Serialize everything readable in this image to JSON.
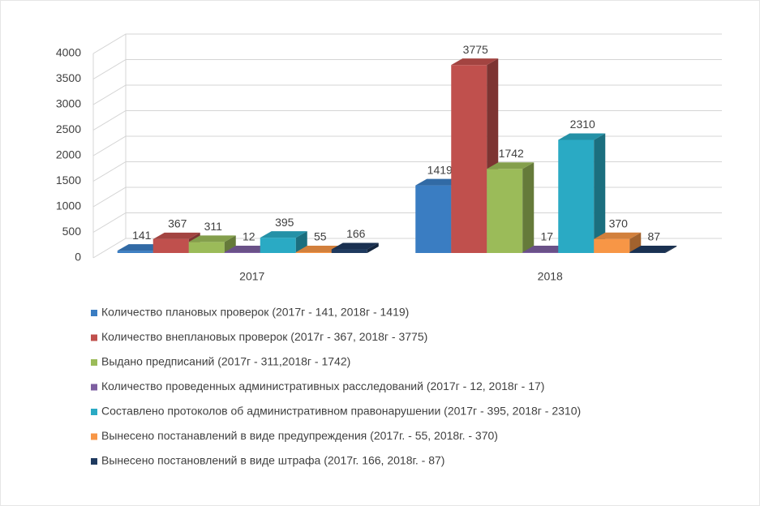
{
  "chart_data": {
    "type": "bar3d",
    "categories": [
      "2017",
      "2018"
    ],
    "series": [
      {
        "name": "Количество плановых проверок (2017г - 141, 2018г - 1419)",
        "color": "#3a7dc2",
        "values": [
          141,
          1419
        ]
      },
      {
        "name": "Количество внеплановых проверок (2017г - 367, 2018г - 3775)",
        "color": "#c0504d",
        "values": [
          367,
          3775
        ]
      },
      {
        "name": "Выдано предписаний (2017г - 311,2018г - 1742)",
        "color": "#9bbb59",
        "values": [
          311,
          1742
        ]
      },
      {
        "name": "Количество проведенных административных расследований (2017г - 12, 2018г - 17)",
        "color": "#7d5fa0",
        "values": [
          12,
          17
        ]
      },
      {
        "name": "Составлено протоколов об административном правонарушении (2017г - 395, 2018г - 2310)",
        "color": "#2aaac4",
        "values": [
          395,
          2310
        ]
      },
      {
        "name": "Вынесено постанавлений в виде предупреждения (2017г. - 55, 2018г. - 370)",
        "color": "#f79646",
        "values": [
          55,
          370
        ]
      },
      {
        "name": "Вынесено постановлений в виде штрафа (2017г. 166, 2018г. - 87)",
        "color": "#1f3a5f",
        "values": [
          166,
          87
        ]
      }
    ],
    "ylim": [
      0,
      4000
    ],
    "yticks": [
      0,
      500,
      1000,
      1500,
      2000,
      2500,
      3000,
      3500,
      4000
    ],
    "grid": true
  }
}
